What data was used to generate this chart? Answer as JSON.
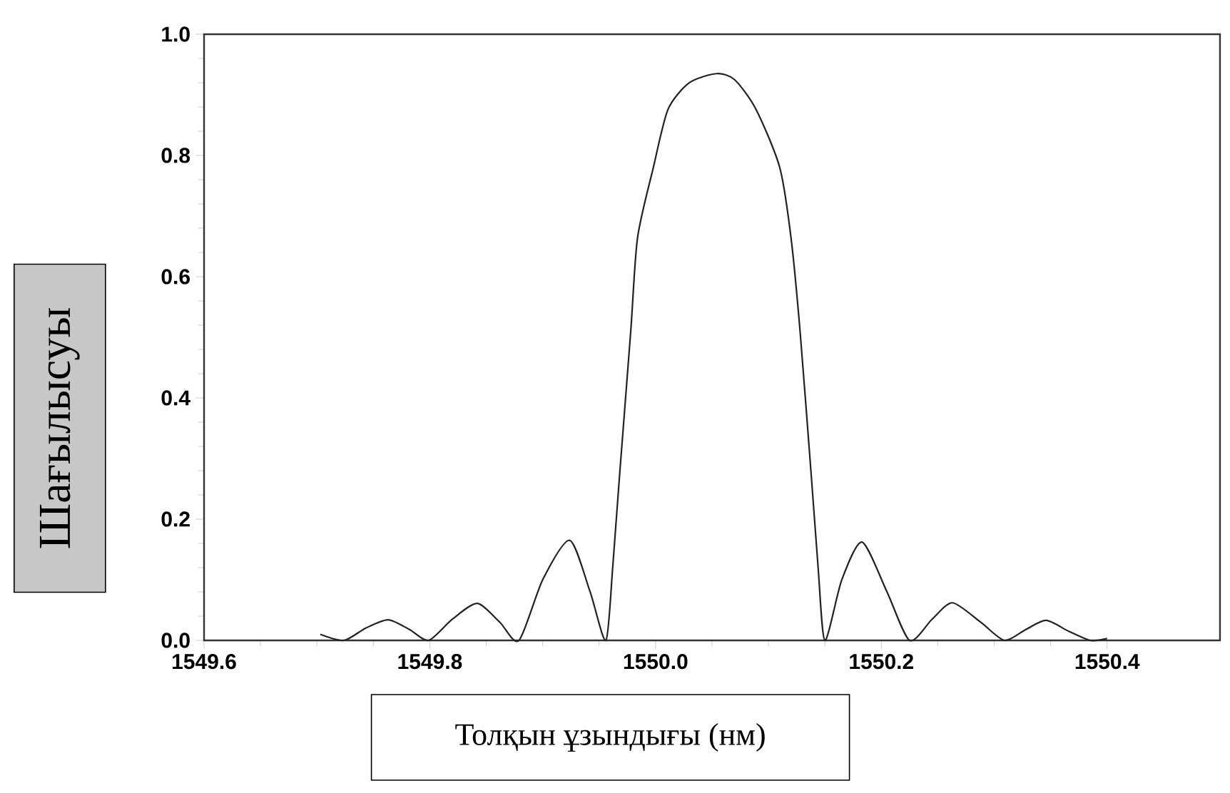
{
  "chart_data": {
    "type": "line",
    "xlabel": "Толқын ұзындығы (нм)",
    "ylabel": "Шағылысуы",
    "xlim": [
      1549.6,
      1550.5
    ],
    "ylim": [
      0.0,
      1.0
    ],
    "xticks": [
      {
        "value": 1549.6,
        "label": "1549.6"
      },
      {
        "value": 1549.8,
        "label": "1549.8"
      },
      {
        "value": 1550.0,
        "label": "1550.0"
      },
      {
        "value": 1550.2,
        "label": "1550.2"
      },
      {
        "value": 1550.4,
        "label": "1550.4"
      }
    ],
    "yticks": [
      {
        "value": 0,
        "label": "0.0"
      },
      {
        "value": 0.2,
        "label": "0.2"
      },
      {
        "value": 0.4,
        "label": "0.4"
      },
      {
        "value": 0.6,
        "label": "0.6"
      },
      {
        "value": 0.8,
        "label": "0.8"
      },
      {
        "value": 1.0,
        "label": "1.0"
      }
    ],
    "marker": "none",
    "line_style": "solid",
    "series": [
      {
        "color": "#222222",
        "x": [
          1549.703,
          1549.724,
          1549.743,
          1549.763,
          1549.782,
          1549.799,
          1549.82,
          1549.842,
          1549.862,
          1549.879,
          1549.9,
          1549.924,
          1549.942,
          1549.956,
          1549.962,
          1549.968,
          1549.978,
          1549.984,
          1549.998,
          1550.011,
          1550.03,
          1550.054,
          1550.07,
          1550.089,
          1550.11,
          1550.12,
          1550.128,
          1550.138,
          1550.144,
          1550.15,
          1550.165,
          1550.183,
          1550.205,
          1550.225,
          1550.245,
          1550.263,
          1550.288,
          1550.309,
          1550.328,
          1550.346,
          1550.366,
          1550.385,
          1550.4
        ],
        "values": [
          0.01,
          0.0,
          0.02,
          0.034,
          0.018,
          0.0,
          0.035,
          0.061,
          0.03,
          0.0,
          0.1,
          0.165,
          0.08,
          0.0,
          0.12,
          0.27,
          0.51,
          0.664,
          0.78,
          0.876,
          0.92,
          0.935,
          0.925,
          0.876,
          0.78,
          0.664,
          0.51,
          0.27,
          0.12,
          0.0,
          0.1,
          0.162,
          0.08,
          0.0,
          0.035,
          0.062,
          0.03,
          0.0,
          0.018,
          0.033,
          0.015,
          0.0,
          0.003
        ]
      }
    ]
  }
}
